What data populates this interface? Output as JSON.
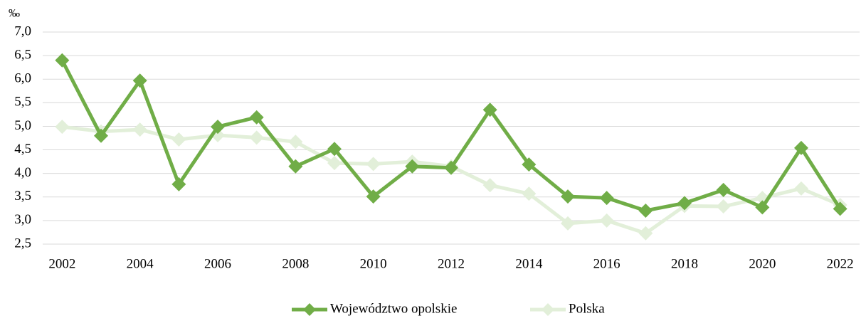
{
  "chart_data": {
    "type": "line",
    "unit": "‰",
    "categories": [
      "2002",
      null,
      "2004",
      null,
      "2006",
      null,
      "2008",
      null,
      "2010",
      null,
      "2012",
      null,
      "2014",
      null,
      "2016",
      null,
      "2018",
      null,
      "2020",
      null,
      "2022"
    ],
    "series": [
      {
        "name": "Województwo opolskie",
        "color": "#70ad47",
        "values": [
          6.4,
          4.8,
          5.97,
          3.77,
          4.99,
          5.19,
          4.15,
          4.52,
          3.51,
          4.15,
          4.12,
          5.35,
          4.19,
          3.51,
          3.48,
          3.21,
          3.37,
          3.65,
          3.28,
          4.54,
          3.25
        ]
      },
      {
        "name": "Polska",
        "color": "#e2efd9",
        "values": [
          4.99,
          4.89,
          4.93,
          4.72,
          4.81,
          4.76,
          4.67,
          4.22,
          4.2,
          4.25,
          4.15,
          3.75,
          3.57,
          2.94,
          3.0,
          2.73,
          3.31,
          3.3,
          3.48,
          3.68,
          3.33
        ]
      }
    ],
    "ylim": [
      2.5,
      7.0
    ],
    "yticks": [
      {
        "value": 2.5,
        "label": "2,5"
      },
      {
        "value": 3.0,
        "label": "3,0"
      },
      {
        "value": 3.5,
        "label": "3,5"
      },
      {
        "value": 4.0,
        "label": "4,0"
      },
      {
        "value": 4.5,
        "label": "4,5"
      },
      {
        "value": 5.0,
        "label": "5,0"
      },
      {
        "value": 5.5,
        "label": "5,5"
      },
      {
        "value": 6.0,
        "label": "6,0"
      },
      {
        "value": 6.5,
        "label": "6,5"
      },
      {
        "value": 7.0,
        "label": "7,0"
      }
    ],
    "grid": true,
    "legend": "bottom"
  }
}
